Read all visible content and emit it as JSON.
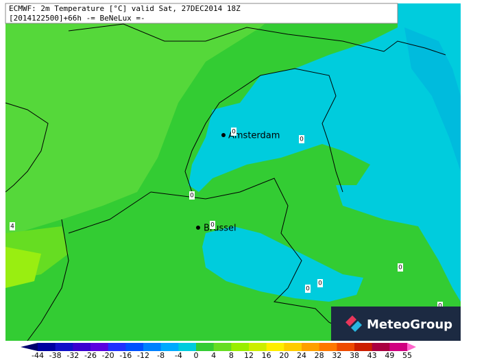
{
  "header": {
    "line1": "ECMWF: 2m Temperature [°C] valid Sat, 27DEC2014 18Z",
    "line2": "[2014122500]+66h -= BeNeLux =-"
  },
  "cities": [
    {
      "name": "Amsterdam"
    },
    {
      "name": "Brussel"
    }
  ],
  "contour_labels": [
    "0",
    "0",
    "0",
    "0",
    "0",
    "0",
    "0",
    "0",
    "4"
  ],
  "logo": "MeteoGroup",
  "legend": {
    "ticks": [
      -44,
      -38,
      -32,
      -26,
      -20,
      -16,
      -12,
      -8,
      -4,
      0,
      4,
      8,
      12,
      16,
      20,
      24,
      28,
      32,
      38,
      43,
      49,
      55
    ]
  }
}
